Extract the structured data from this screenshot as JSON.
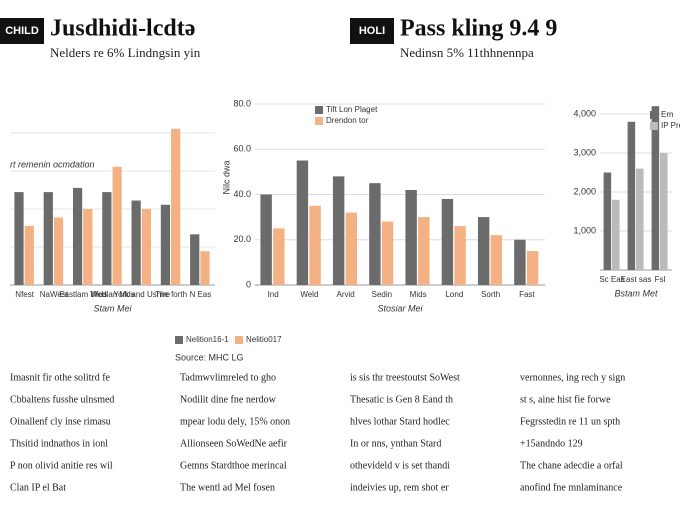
{
  "chart_data": [
    {
      "type": "bar",
      "badge": "CHILD",
      "title": "Jusdhidi-lcdtə",
      "subtitle": "Nelders re 6% Lindngsin yin",
      "annotation": "rt remenin ocmdation",
      "xlabel": "Stam Mei",
      "categories": [
        "Nfest",
        "NaWest",
        "Eastlam Mids",
        "Wedlan Mds",
        "York and Ushire",
        "The forth",
        "N Eas"
      ],
      "series": [
        {
          "name": "Nelition16-1",
          "color": "#6b6b6b",
          "values": [
            22,
            22,
            23,
            22,
            20,
            19,
            12
          ]
        },
        {
          "name": "Nelitio017",
          "color": "#f4b183",
          "values": [
            14,
            16,
            18,
            28,
            18,
            37,
            8
          ]
        }
      ],
      "ylim": [
        0,
        45
      ],
      "grid": true
    },
    {
      "type": "bar",
      "badge": "HOLI",
      "title": "Pass kling 9.4 9",
      "subtitle": "Nedinsn 5% 11thhnennpa",
      "xlabel": "Stosiar Mei",
      "ylabel": "Nilc dwa",
      "categories": [
        "Ind",
        "Weld",
        "Arvid",
        "Sedin",
        "Mids",
        "Lond",
        "Sorth",
        "Fast"
      ],
      "series": [
        {
          "name": "Tift Lon Plaget",
          "color": "#6b6b6b",
          "values": [
            40,
            55,
            48,
            45,
            42,
            38,
            30,
            20
          ]
        },
        {
          "name": "Drendon tor",
          "color": "#f4b183",
          "values": [
            25,
            35,
            32,
            28,
            30,
            26,
            22,
            15
          ]
        }
      ],
      "ylim": [
        0,
        95
      ],
      "yticks": [
        0,
        {
          "value": 20,
          "label": "20.0"
        },
        {
          "value": 40,
          "label": "40.0"
        },
        {
          "value": 60,
          "label": "60.0"
        },
        {
          "value": 80,
          "label": "80.0"
        }
      ],
      "grid": true,
      "legend": "top-left"
    },
    {
      "type": "bar",
      "xlabel": "Bstam Met",
      "categories": [
        "Sc Eas",
        "East sas",
        "Fsl"
      ],
      "series": [
        {
          "name": "Ern",
          "color": "#6b6b6b",
          "values": [
            2500,
            3800,
            4200
          ]
        },
        {
          "name": "IP Pre",
          "color": "#bbbbbb",
          "values": [
            1800,
            2600,
            3000
          ]
        }
      ],
      "ylim": [
        0,
        5000
      ],
      "yticks": [
        {
          "value": 1000,
          "label": "1,000"
        },
        {
          "value": 2000,
          "label": "2,000"
        },
        {
          "value": 3000,
          "label": "3,000"
        },
        {
          "value": 4000,
          "label": "4,000"
        }
      ],
      "grid": true,
      "legend": "top-right"
    }
  ],
  "source": "Source: MHC LG",
  "columns": [
    [
      "Imasnit fir othe solitrd fe",
      "Cbbaltens fusshe ulnsmed",
      "Oinallenf cly inse rimasu",
      "Thsitid indnathos in ionl",
      "P non olivid anitie res wil",
      "Clan IP el Bat"
    ],
    [
      "Tadmwvlimreled to gho",
      "Nodilit dine fne nerdow",
      "mpear lodu dely, 15% onon",
      "Allionseen SoWedNe aefir",
      "Gemns Stardthoe merincal",
      "The wentl ad Mel fosen"
    ],
    [
      "is sis thr treestoutst SoWest",
      "Thesatic is Gen 8 Eand th",
      "hlves lothar Stard hodlec",
      "In or nns, ynthan Stard",
      "othevideld v is set thandi",
      "indeivies up, rem shot er"
    ],
    [
      "vernonnes, ing rech y sign",
      "st s, aine hist fie forwe",
      "Fegrsstedin re 11 un spth",
      "+15andndo 129",
      "The chane adecdie a orfal",
      "anofind fne mnlaminance"
    ]
  ]
}
